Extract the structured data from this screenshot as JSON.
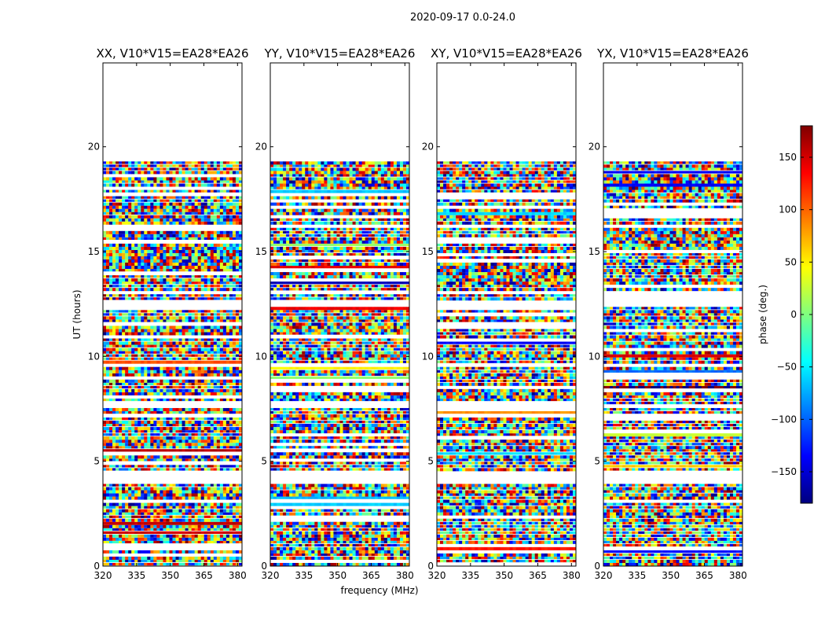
{
  "chart_data": {
    "type": "heatmap",
    "suptitle": "2020-09-17 0.0-24.0",
    "xlabel": "frequency (MHz)",
    "ylabel": "UT (hours)",
    "xlim": [
      320,
      382
    ],
    "ylim": [
      0,
      24
    ],
    "xticks": [
      320,
      335,
      350,
      365,
      380
    ],
    "yticks": [
      0,
      5,
      10,
      15,
      20
    ],
    "data_time_range_hours": [
      0.0,
      19.3
    ],
    "colorbar": {
      "label": "phase (deg.)",
      "range": [
        -180,
        180
      ],
      "ticks": [
        -150,
        -100,
        -50,
        0,
        50,
        100,
        150
      ],
      "colormap": "jet",
      "colors": [
        "#00007f",
        "#0000ff",
        "#007fff",
        "#00ffff",
        "#7fff7f",
        "#ffff00",
        "#ff7f00",
        "#ff0000",
        "#7f0000"
      ]
    },
    "panels": [
      {
        "name": "XX",
        "title": "XX, V10*V15=EA28*EA26"
      },
      {
        "name": "YY",
        "title": "YY, V10*V15=EA28*EA26"
      },
      {
        "name": "XY",
        "title": "XY, V10*V15=EA28*EA26"
      },
      {
        "name": "YX",
        "title": "YX, V10*V15=EA28*EA26"
      }
    ],
    "flagged_gaps_hours": [
      [
        3.95,
        4.45
      ],
      [
        7.55,
        7.75
      ],
      [
        9.45,
        9.6
      ],
      [
        12.35,
        12.65
      ],
      [
        12.95,
        13.1
      ],
      [
        16.1,
        16.3
      ]
    ]
  }
}
